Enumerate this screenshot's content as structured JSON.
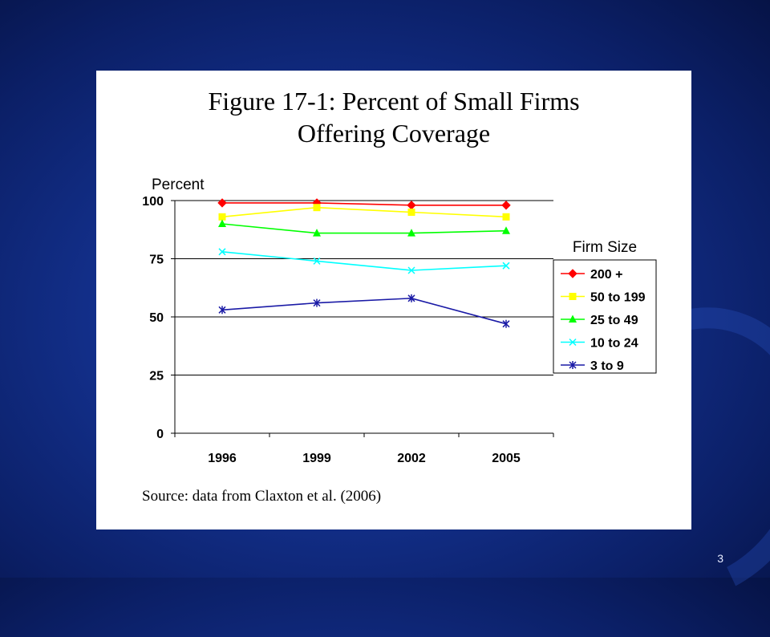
{
  "slide": {
    "title_line1": "Figure 17-1:  Percent of Small Firms",
    "title_line2": "Offering Coverage",
    "source": "Source:  data from Claxton et al. (2006)",
    "page_number": "3"
  },
  "chart_data": {
    "type": "line",
    "ylabel": "Percent",
    "xlabel": "",
    "categories": [
      "1996",
      "1999",
      "2002",
      "2005"
    ],
    "yticks": [
      0,
      25,
      50,
      75,
      100
    ],
    "ylim": [
      0,
      100
    ],
    "grid": true,
    "legend_title": "Firm Size",
    "legend_position": "right",
    "series": [
      {
        "name": "200 +",
        "values": [
          99,
          99,
          98,
          98
        ],
        "color": "#ff0000",
        "marker": "diamond"
      },
      {
        "name": "50 to 199",
        "values": [
          93,
          97,
          95,
          93
        ],
        "color": "#ffff00",
        "marker": "square"
      },
      {
        "name": "25 to 49",
        "values": [
          90,
          86,
          86,
          87
        ],
        "color": "#00ff00",
        "marker": "triangle"
      },
      {
        "name": "10 to 24",
        "values": [
          78,
          74,
          70,
          72
        ],
        "color": "#00ffff",
        "marker": "x"
      },
      {
        "name": "3 to 9",
        "values": [
          53,
          56,
          58,
          47
        ],
        "color": "#1a1aa6",
        "marker": "star"
      }
    ]
  }
}
